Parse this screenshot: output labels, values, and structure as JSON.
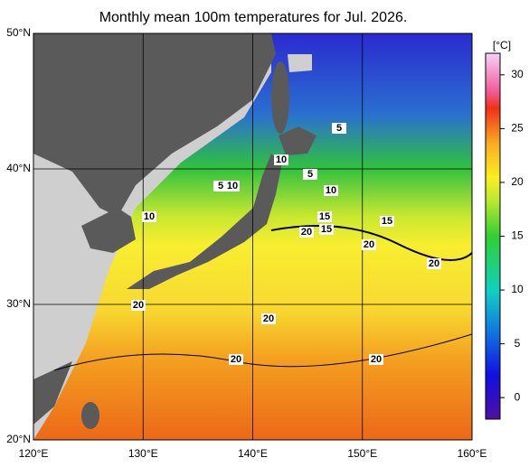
{
  "title": "Monthly mean 100m temperatures for Jul. 2026.",
  "lat_ticks": [
    {
      "value": 50,
      "label": "50°N"
    },
    {
      "value": 40,
      "label": "40°N"
    },
    {
      "value": 30,
      "label": "30°N"
    },
    {
      "value": 20,
      "label": "20°N"
    }
  ],
  "lon_ticks": [
    {
      "value": 120,
      "label": "120°E"
    },
    {
      "value": 130,
      "label": "130°E"
    },
    {
      "value": 140,
      "label": "140°E"
    },
    {
      "value": 150,
      "label": "150°E"
    },
    {
      "value": 160,
      "label": "160°E"
    }
  ],
  "lat_range": [
    20,
    50
  ],
  "lon_range": [
    120,
    160
  ],
  "colorbar": {
    "unit": "[°C]",
    "range": [
      -2,
      32
    ],
    "ticks": [
      0,
      5,
      10,
      15,
      20,
      25,
      30
    ]
  },
  "contour_labels": [
    5,
    10,
    5,
    5,
    10,
    10,
    10,
    15,
    15,
    20,
    15,
    20,
    20,
    20,
    20,
    20,
    20
  ]
}
